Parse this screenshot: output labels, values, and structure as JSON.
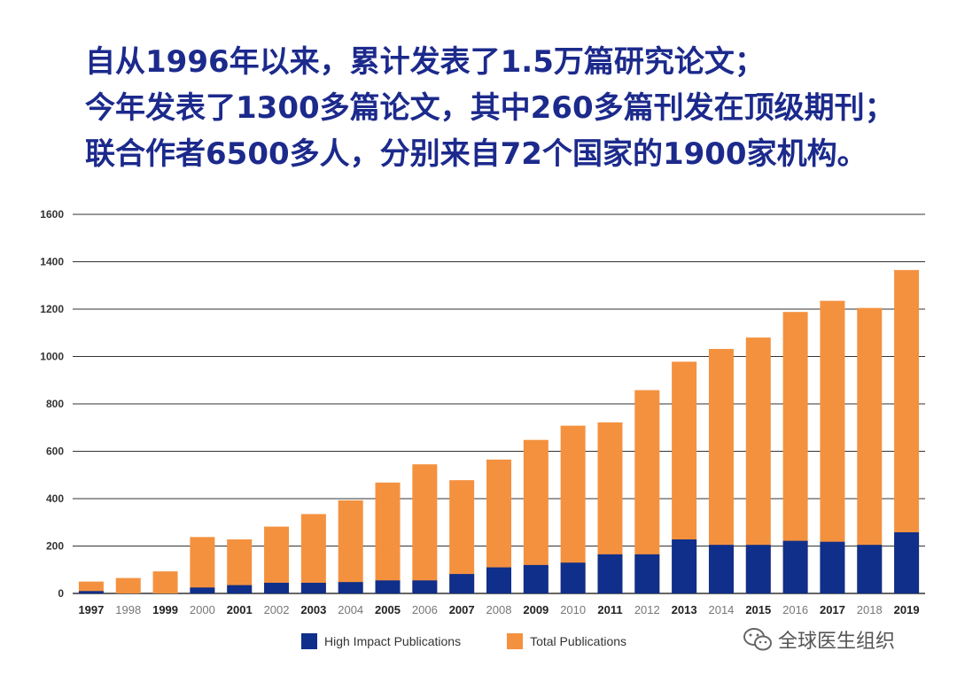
{
  "headline": {
    "line1": "自从1996年以来，累计发表了1.5万篇研究论文；",
    "line2": "今年发表了1300多篇论文，其中260多篇刊发在顶级期刊；",
    "line3": "联合作者6500多人，分别来自72个国家的1900家机构。"
  },
  "colors": {
    "headline": "#1c2a8c",
    "high_impact": "#0f2f8a",
    "total": "#f4913f",
    "grid": "#333333",
    "tick_text": "#333333"
  },
  "chart_data": {
    "type": "bar",
    "stacked": true,
    "categories": [
      "1997",
      "1998",
      "1999",
      "2000",
      "2001",
      "2002",
      "2003",
      "2004",
      "2005",
      "2006",
      "2007",
      "2008",
      "2009",
      "2010",
      "2011",
      "2012",
      "2013",
      "2014",
      "2015",
      "2016",
      "2017",
      "2018",
      "2019"
    ],
    "bold_categories": [
      "1997",
      "1999",
      "2001",
      "2003",
      "2005",
      "2007",
      "2009",
      "2011",
      "2013",
      "2015",
      "2017",
      "2019"
    ],
    "series": [
      {
        "name": "High Impact Publications",
        "color": "#0f2f8a",
        "values": [
          10,
          0,
          0,
          25,
          35,
          45,
          45,
          48,
          55,
          55,
          82,
          110,
          120,
          130,
          165,
          165,
          228,
          205,
          205,
          222,
          218,
          205,
          258
        ]
      },
      {
        "name": "Total Publications",
        "color": "#f4913f",
        "values": [
          50,
          65,
          93,
          238,
          228,
          282,
          335,
          393,
          468,
          545,
          478,
          565,
          648,
          708,
          722,
          858,
          978,
          1032,
          1080,
          1188,
          1235,
          1205,
          1365
        ]
      }
    ],
    "ylim": [
      0,
      1600
    ],
    "yticks": [
      0,
      200,
      400,
      600,
      800,
      1000,
      1200,
      1400,
      1600
    ],
    "grid": true,
    "legend_position": "bottom-center",
    "xlabel": "",
    "ylabel": ""
  },
  "legend": {
    "high_impact_label": "High Impact Publications",
    "total_label": "Total Publications"
  },
  "watermark": {
    "icon": "wechat-icon",
    "text": "全球医生组织"
  }
}
